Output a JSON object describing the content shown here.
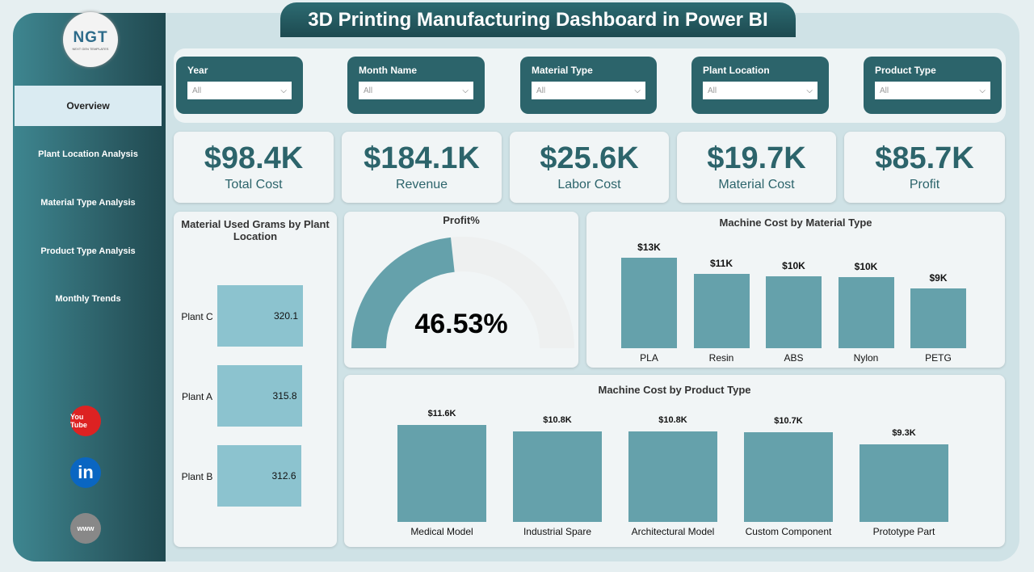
{
  "title": "3D Printing Manufacturing Dashboard in Power BI",
  "logo": {
    "text": "NGT",
    "subtitle": "NEXT GEN TEMPLATES"
  },
  "nav": [
    {
      "label": "Overview",
      "active": true
    },
    {
      "label": "Plant Location Analysis"
    },
    {
      "label": "Material Type Analysis"
    },
    {
      "label": "Product Type Analysis"
    },
    {
      "label": "Monthly Trends"
    }
  ],
  "social": [
    {
      "icon": "youtube-icon",
      "label": "You Tube",
      "color": "#d22"
    },
    {
      "icon": "linkedin-icon",
      "label": "in",
      "color": "#0a66c2"
    },
    {
      "icon": "globe-icon",
      "label": "www",
      "color": "#888"
    }
  ],
  "filters": [
    {
      "label": "Year",
      "value": "All"
    },
    {
      "label": "Month Name",
      "value": "All"
    },
    {
      "label": "Material Type",
      "value": "All"
    },
    {
      "label": "Plant Location",
      "value": "All"
    },
    {
      "label": "Product Type",
      "value": "All"
    }
  ],
  "kpis": [
    {
      "value": "$98.4K",
      "label": "Total Cost"
    },
    {
      "value": "$184.1K",
      "label": "Revenue"
    },
    {
      "value": "$25.6K",
      "label": "Labor Cost"
    },
    {
      "value": "$19.7K",
      "label": "Material Cost"
    },
    {
      "value": "$85.7K",
      "label": "Profit"
    }
  ],
  "chart_data": [
    {
      "type": "bar",
      "orientation": "horizontal",
      "title": "Material Used Grams by Plant Location",
      "categories": [
        "Plant C",
        "Plant A",
        "Plant B"
      ],
      "values": [
        320.1,
        315.8,
        312.6
      ],
      "labels": [
        "320.1",
        "315.8",
        "312.6"
      ],
      "color": "#8cc3cf"
    },
    {
      "type": "gauge",
      "title": "Profit%",
      "value": 46.53,
      "label": "46.53%",
      "range": [
        0,
        100
      ],
      "color": "#65a1ab"
    },
    {
      "type": "bar",
      "title": "Machine Cost by Material Type",
      "categories": [
        "PLA",
        "Resin",
        "ABS",
        "Nylon",
        "PETG"
      ],
      "values": [
        13,
        10.7,
        10.3,
        10.2,
        8.6
      ],
      "labels": [
        "$13K",
        "$11K",
        "$10K",
        "$10K",
        "$9K"
      ],
      "unit": "K$",
      "color": "#65a1ab"
    },
    {
      "type": "bar",
      "title": "Machine Cost by Product Type",
      "categories": [
        "Medical Model",
        "Industrial Spare",
        "Architectural Model",
        "Custom Component",
        "Prototype Part"
      ],
      "values": [
        11.6,
        10.8,
        10.8,
        10.7,
        9.3
      ],
      "labels": [
        "$11.6K",
        "$10.8K",
        "$10.8K",
        "$10.7K",
        "$9.3K"
      ],
      "unit": "K$",
      "color": "#65a1ab"
    }
  ]
}
